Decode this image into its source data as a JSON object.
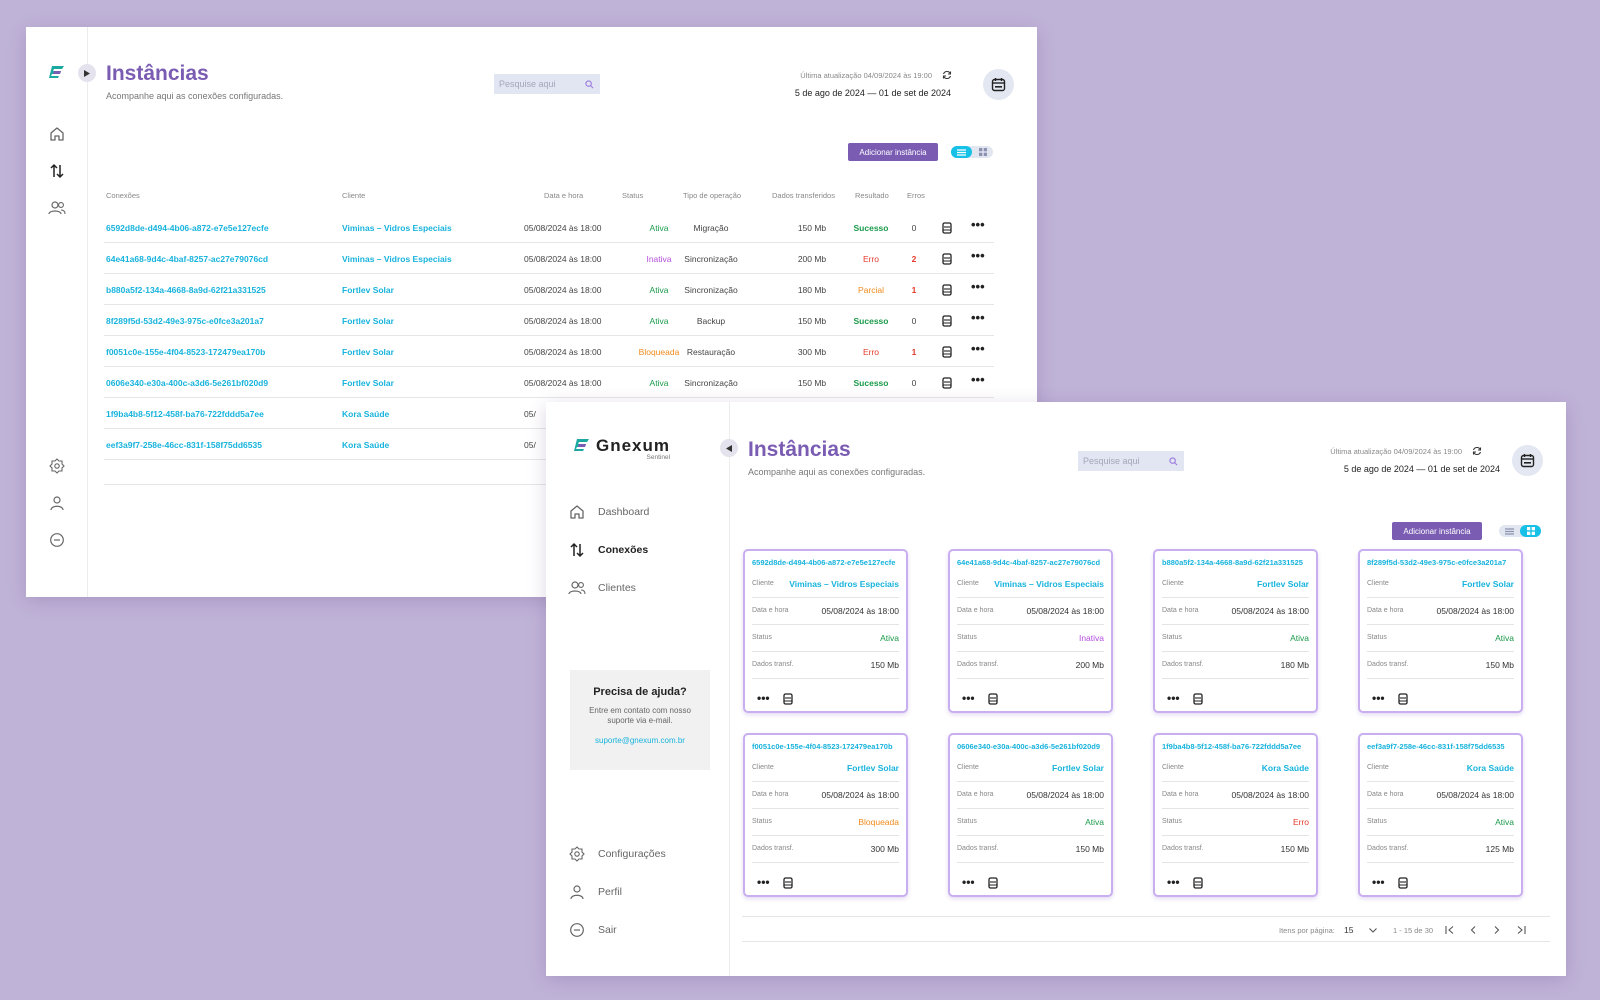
{
  "page": {
    "title": "Instâncias",
    "subtitle": "Acompanhe aqui as conexões configuradas.",
    "search_placeholder": "Pesquise aqui",
    "last_update": "Última atualização 04/09/2024 às 19:00",
    "date_range": "5 de ago de 2024 — 01 de set de 2024",
    "add_button": "Adicionar instância"
  },
  "brand": {
    "name": "Gnexum",
    "sub": "Sentinel"
  },
  "nav": {
    "dashboard": "Dashboard",
    "connections": "Conexões",
    "clients": "Clientes",
    "settings": "Configurações",
    "profile": "Perfil",
    "logout": "Sair"
  },
  "help": {
    "title": "Precisa de ajuda?",
    "text": "Entre em contato com nosso suporte via e-mail.",
    "email": "suporte@gnexum.com.br"
  },
  "table": {
    "headers": {
      "conn": "Conexões",
      "client": "Cliente",
      "date": "Data e hora",
      "status": "Status",
      "op": "Tipo de operação",
      "data": "Dados transferidos",
      "result": "Resultado",
      "errors": "Erros"
    },
    "rows": [
      {
        "id": "6592d8de-d494-4b06-a872-e7e5e127ecfe",
        "client": "Viminas – Vidros Especiais",
        "date": "05/08/2024 às 18:00",
        "status": "Ativa",
        "op": "Migração",
        "data": "150 Mb",
        "result": "Sucesso",
        "errors": "0"
      },
      {
        "id": "64e41a68-9d4c-4baf-8257-ac27e79076cd",
        "client": "Viminas – Vidros Especiais",
        "date": "05/08/2024 às 18:00",
        "status": "Inativa",
        "op": "Sincronização",
        "data": "200 Mb",
        "result": "Erro",
        "errors": "2"
      },
      {
        "id": "b880a5f2-134a-4668-8a9d-62f21a331525",
        "client": "Fortlev Solar",
        "date": "05/08/2024 às 18:00",
        "status": "Ativa",
        "op": "Sincronização",
        "data": "180 Mb",
        "result": "Parcial",
        "errors": "1"
      },
      {
        "id": "8f289f5d-53d2-49e3-975c-e0fce3a201a7",
        "client": "Fortlev Solar",
        "date": "05/08/2024 às 18:00",
        "status": "Ativa",
        "op": "Backup",
        "data": "150 Mb",
        "result": "Sucesso",
        "errors": "0"
      },
      {
        "id": "f0051c0e-155e-4f04-8523-172479ea170b",
        "client": "Fortlev Solar",
        "date": "05/08/2024 às 18:00",
        "status": "Bloqueada",
        "op": "Restauração",
        "data": "300 Mb",
        "result": "Erro",
        "errors": "1"
      },
      {
        "id": "0606e340-e30a-400c-a3d6-5e261bf020d9",
        "client": "Fortlev Solar",
        "date": "05/08/2024 às 18:00",
        "status": "Ativa",
        "op": "Sincronização",
        "data": "150 Mb",
        "result": "Sucesso",
        "errors": "0"
      },
      {
        "id": "1f9ba4b8-5f12-458f-ba76-722fddd5a7ee",
        "client": "Kora Saúde",
        "date": "05/",
        "status": "",
        "op": "",
        "data": "",
        "result": "",
        "errors": ""
      },
      {
        "id": "eef3a9f7-258e-46cc-831f-158f75dd6535",
        "client": "Kora Saúde",
        "date": "05/",
        "status": "",
        "op": "",
        "data": "",
        "result": "",
        "errors": ""
      }
    ]
  },
  "card_labels": {
    "client": "Cliente",
    "date": "Data e hora",
    "status": "Status",
    "data": "Dados transf."
  },
  "cards": [
    {
      "id": "6592d8de-d494-4b06-a872-e7e5e127ecfe",
      "client": "Viminas – Vidros Especiais",
      "date": "05/08/2024 às 18:00",
      "status": "Ativa",
      "data": "150 Mb"
    },
    {
      "id": "64e41a68-9d4c-4baf-8257-ac27e79076cd",
      "client": "Viminas – Vidros Especiais",
      "date": "05/08/2024 às 18:00",
      "status": "Inativa",
      "data": "200 Mb"
    },
    {
      "id": "b880a5f2-134a-4668-8a9d-62f21a331525",
      "client": "Fortlev Solar",
      "date": "05/08/2024 às 18:00",
      "status": "Ativa",
      "data": "180 Mb"
    },
    {
      "id": "8f289f5d-53d2-49e3-975c-e0fce3a201a7",
      "client": "Fortlev Solar",
      "date": "05/08/2024 às 18:00",
      "status": "Ativa",
      "data": "150 Mb"
    },
    {
      "id": "f0051c0e-155e-4f04-8523-172479ea170b",
      "client": "Fortlev Solar",
      "date": "05/08/2024 às 18:00",
      "status": "Bloqueada",
      "data": "300 Mb"
    },
    {
      "id": "0606e340-e30a-400c-a3d6-5e261bf020d9",
      "client": "Fortlev Solar",
      "date": "05/08/2024 às 18:00",
      "status": "Ativa",
      "data": "150 Mb"
    },
    {
      "id": "1f9ba4b8-5f12-458f-ba76-722fddd5a7ee",
      "client": "Kora Saúde",
      "date": "05/08/2024 às 18:00",
      "status": "Erro",
      "data": "150 Mb"
    },
    {
      "id": "eef3a9f7-258e-46cc-831f-158f75dd6535",
      "client": "Kora Saúde",
      "date": "05/08/2024 às 18:00",
      "status": "Ativa",
      "data": "125 Mb"
    }
  ],
  "pagination": {
    "per_page_label": "Itens por página:",
    "per_page": "15",
    "range": "1 - 15 de 30"
  },
  "colors": {
    "accent": "#7a5cb3",
    "link": "#17b3dd",
    "active": "#1a9a4a",
    "inactive": "#b44fe0",
    "blocked": "#f08a1c",
    "error": "#e53b2c"
  },
  "icons": [
    "home-icon",
    "transfer-icon",
    "users-icon",
    "gear-icon",
    "user-icon",
    "logout-icon",
    "search-icon",
    "refresh-icon",
    "calendar-icon",
    "list-view-icon",
    "grid-view-icon",
    "more-icon",
    "database-icon",
    "chevron-left-icon",
    "chevron-right-icon",
    "first-page-icon",
    "last-page-icon",
    "chevron-down-icon"
  ]
}
